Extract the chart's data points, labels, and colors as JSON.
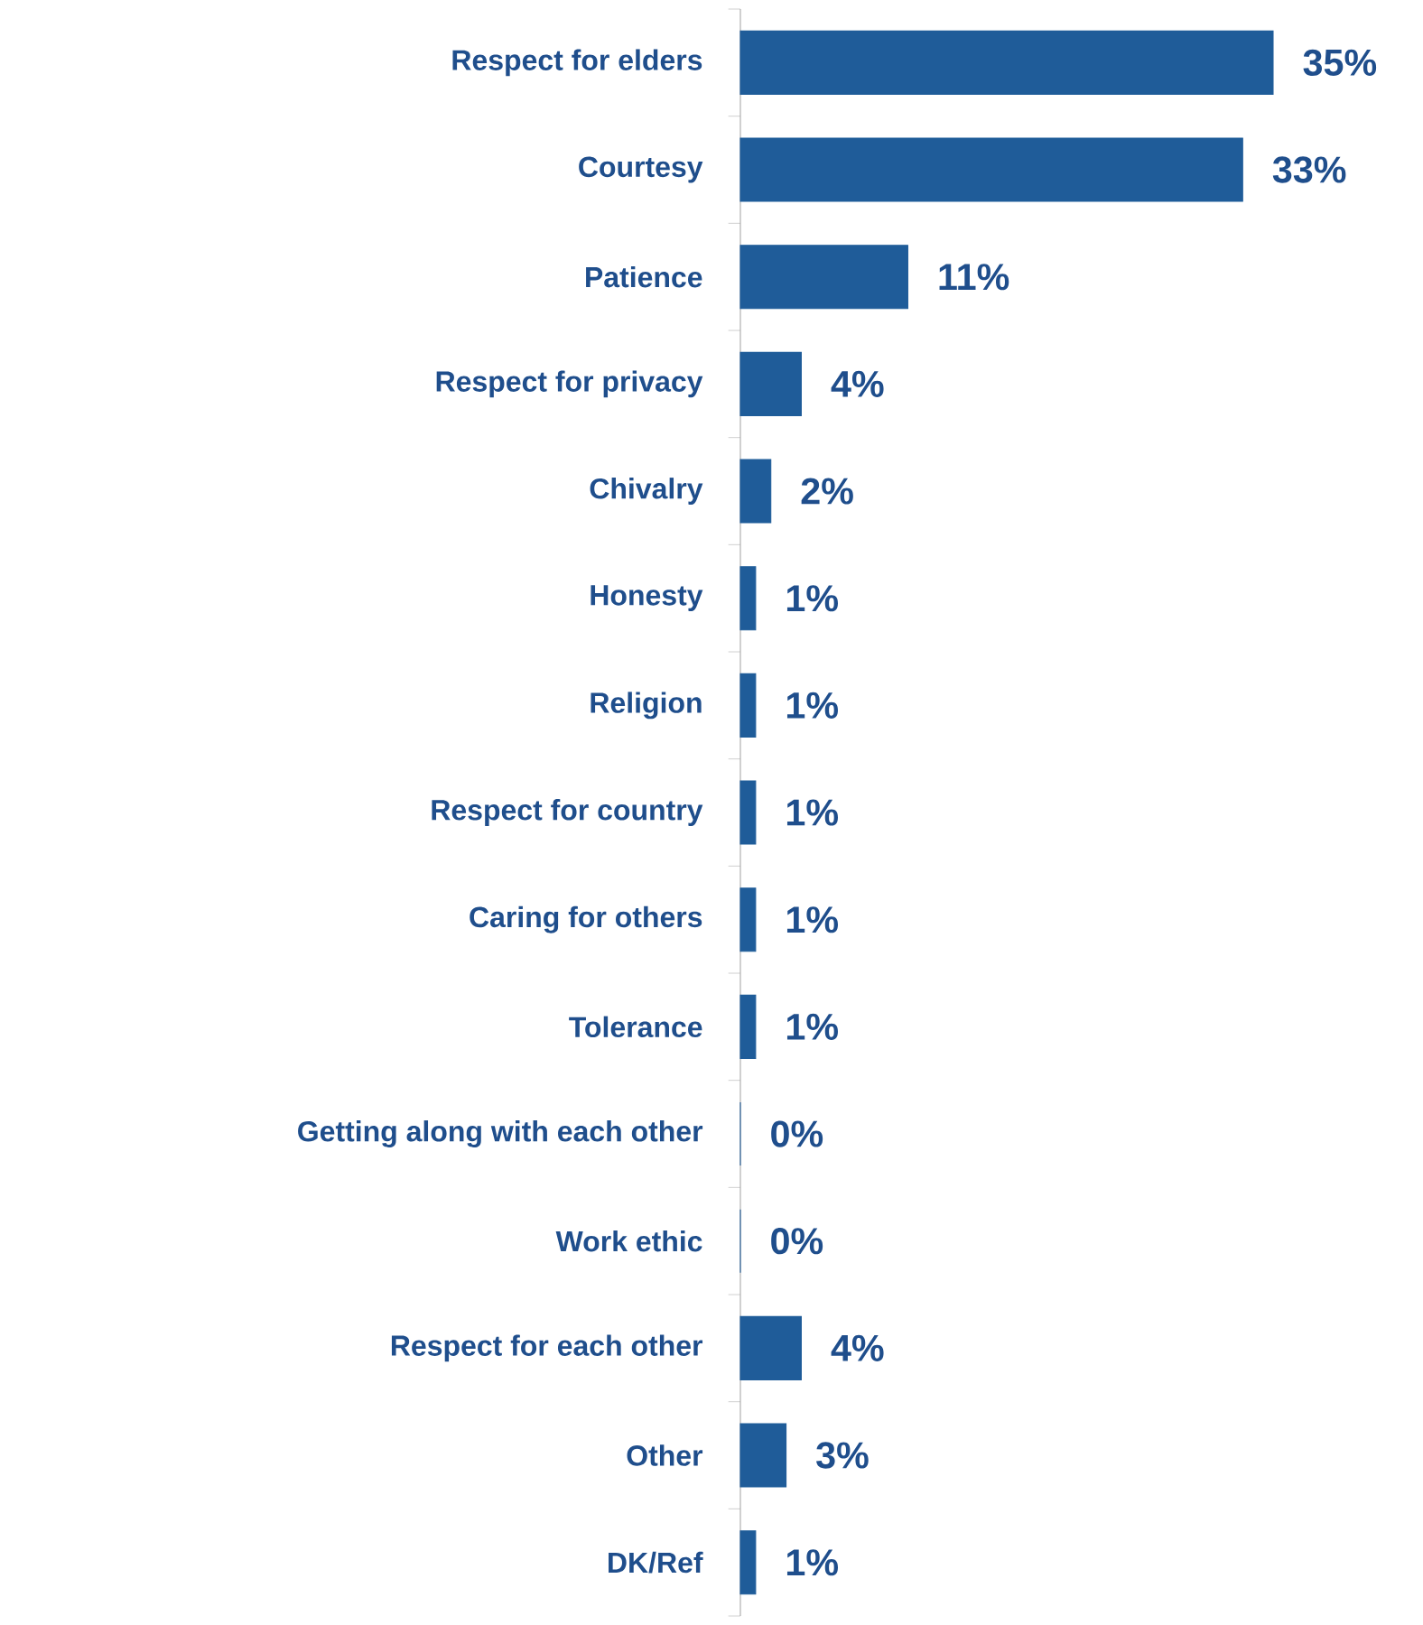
{
  "chart_data": {
    "type": "bar",
    "orientation": "horizontal",
    "color": "#1f5c99",
    "categories": [
      "Respect for elders",
      "Courtesy",
      "Patience",
      "Respect for privacy",
      "Chivalry",
      "Honesty",
      "Religion",
      "Respect for country",
      "Caring for others",
      "Tolerance",
      "Getting along with each other",
      "Work ethic",
      "Respect for each other",
      "Other",
      "DK/Ref"
    ],
    "values": [
      35,
      33,
      11,
      4,
      2,
      1,
      1,
      1,
      1,
      1,
      0,
      0,
      4,
      3,
      1
    ],
    "value_labels": [
      "35%",
      "33%",
      "11%",
      "4%",
      "2%",
      "1%",
      "1%",
      "1%",
      "1%",
      "1%",
      "0%",
      "0%",
      "4%",
      "3%",
      "1%"
    ]
  }
}
